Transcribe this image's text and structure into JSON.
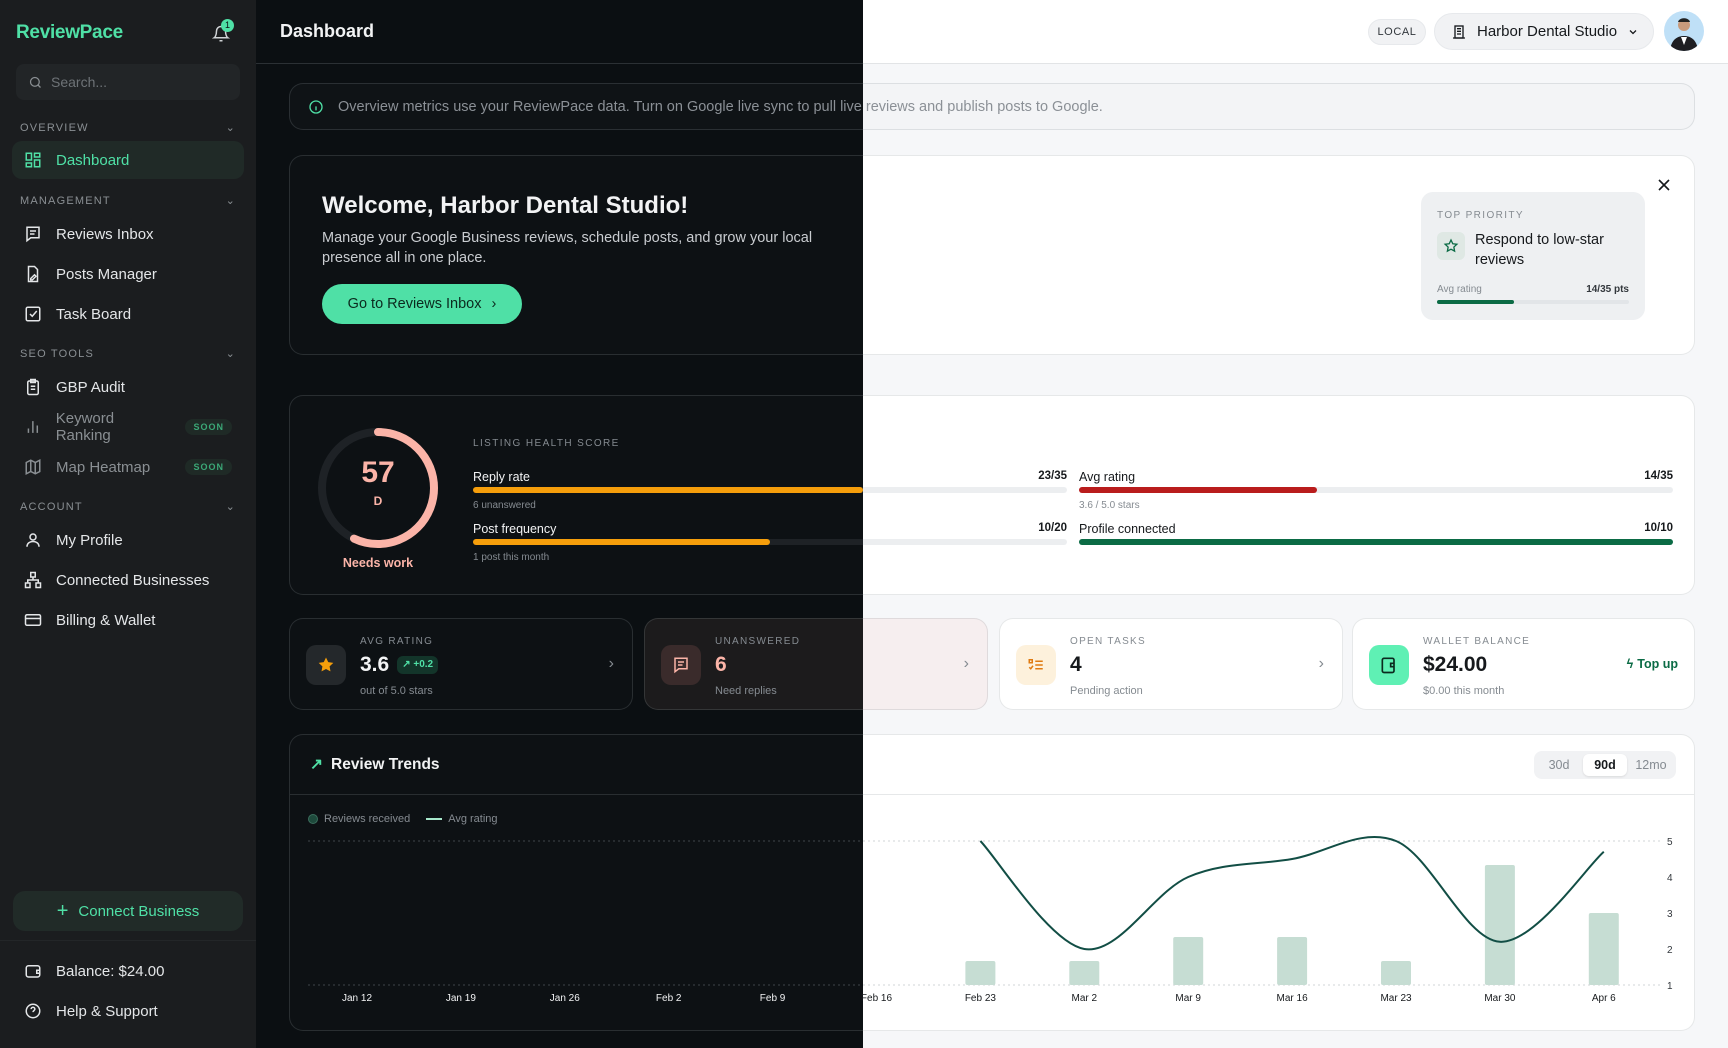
{
  "sidebar": {
    "logo": "ReviewPace",
    "notification_count": "1",
    "search_placeholder": "Search...",
    "sections": {
      "overview": "OVERVIEW",
      "management": "MANAGEMENT",
      "seo_tools": "SEO TOOLS",
      "account": "ACCOUNT"
    },
    "items": {
      "dashboard": "Dashboard",
      "reviews_inbox": "Reviews Inbox",
      "posts_manager": "Posts Manager",
      "task_board": "Task Board",
      "gbp_audit": "GBP Audit",
      "keyword_ranking": "Keyword Ranking",
      "map_heatmap": "Map Heatmap",
      "my_profile": "My Profile",
      "connected_businesses": "Connected Businesses",
      "billing_wallet": "Billing & Wallet"
    },
    "soon_badge": "SOON",
    "connect_button": "Connect Business",
    "balance": "Balance: $24.00",
    "help": "Help & Support"
  },
  "header": {
    "title": "Dashboard",
    "mode_badge": "LOCAL",
    "business": "Harbor Dental Studio"
  },
  "banner": "Overview metrics use your ReviewPace data. Turn on Google live sync to pull live reviews and publish posts to Google.",
  "welcome": {
    "title": "Welcome, Harbor Dental Studio!",
    "subtitle": "Manage your Google Business reviews, schedule posts, and grow your local presence all in one place.",
    "button": "Go to Reviews Inbox",
    "priority": {
      "label": "TOP PRIORITY",
      "title": "Respond to low-star reviews",
      "metric": "Avg rating",
      "value": "14/35 pts",
      "progress": 0.4
    }
  },
  "health": {
    "score": "57",
    "score_value": 57,
    "grade": "D",
    "status": "Needs work",
    "label": "LISTING HEALTH SCORE",
    "metrics": [
      {
        "name": "Reply rate",
        "value": "23/35",
        "fraction": 0.657,
        "sub": "6 unanswered",
        "color": "#f59e0b"
      },
      {
        "name": "Avg rating",
        "value": "14/35",
        "fraction": 0.4,
        "sub": "3.6 / 5.0 stars",
        "color": "#b91c1c"
      },
      {
        "name": "Post frequency",
        "value": "10/20",
        "fraction": 0.5,
        "sub": "1 post this month",
        "color": "#f59e0b"
      },
      {
        "name": "Profile connected",
        "value": "10/10",
        "fraction": 1.0,
        "sub": "",
        "color": "#0b6b45"
      }
    ]
  },
  "stats": {
    "avg_rating": {
      "label": "AVG RATING",
      "value": "3.6",
      "delta": "+0.2",
      "sub": "out of 5.0 stars"
    },
    "unanswered": {
      "label": "UNANSWERED",
      "value": "6",
      "sub": "Need replies"
    },
    "open_tasks": {
      "label": "OPEN TASKS",
      "value": "4",
      "sub": "Pending action"
    },
    "wallet": {
      "label": "WALLET BALANCE",
      "value": "$24.00",
      "sub": "$0.00 this month",
      "action": "Top up"
    }
  },
  "trends": {
    "title": "Review Trends",
    "ranges": [
      "30d",
      "90d",
      "12mo"
    ],
    "selected_range": "90d"
  },
  "chart_data": {
    "type": "bar+line",
    "categories": [
      "Jan 12",
      "Jan 19",
      "Jan 26",
      "Feb 2",
      "Feb 9",
      "Feb 16",
      "Feb 23",
      "Mar 2",
      "Mar 9",
      "Mar 16",
      "Mar 23",
      "Mar 30",
      "Apr 6"
    ],
    "series": [
      {
        "name": "Reviews received",
        "type": "bar",
        "color": "#c6ddd3",
        "values": [
          0,
          0,
          0,
          0,
          0,
          0,
          1,
          1,
          2,
          2,
          1,
          5,
          3
        ]
      },
      {
        "name": "Avg rating",
        "type": "line",
        "color": "#124e45",
        "axis": "right",
        "values": [
          null,
          null,
          null,
          null,
          null,
          null,
          5,
          2,
          4,
          4.5,
          5,
          2.2,
          4.7
        ]
      }
    ],
    "bar_ylim": [
      0,
      6
    ],
    "right_ylim": [
      1,
      5
    ],
    "right_ticks": [
      "1",
      "2",
      "3",
      "4",
      "5"
    ],
    "legend": "top-left",
    "grid": "dotted top and bottom lines"
  },
  "colors": {
    "accent": "#4fe0a6",
    "ring": "#fbb4a8",
    "success": "#0b6b45"
  }
}
